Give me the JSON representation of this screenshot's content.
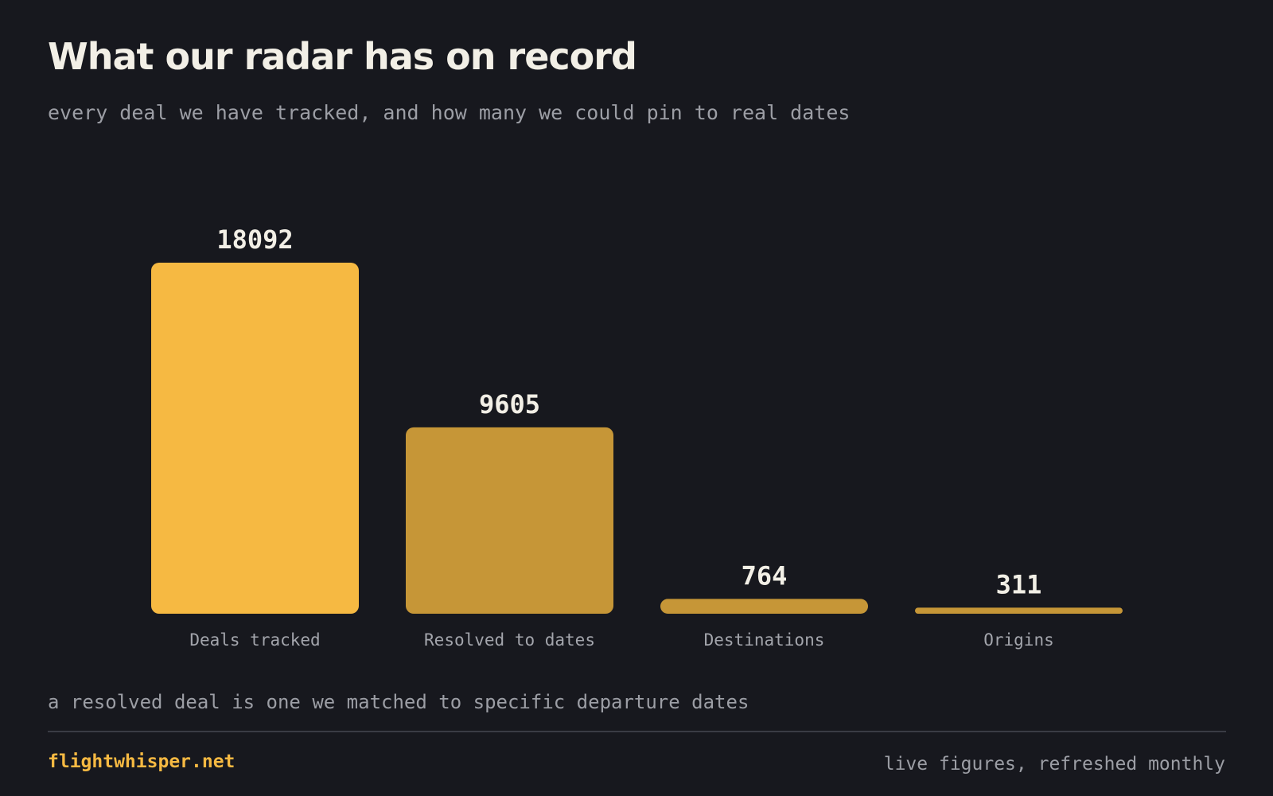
{
  "header": {
    "title": "What our radar has on record",
    "subtitle": "every deal we have tracked, and how many we could pin to real dates"
  },
  "chart_data": {
    "type": "bar",
    "categories": [
      "Deals tracked",
      "Resolved to dates",
      "Destinations",
      "Origins"
    ],
    "values": [
      18092,
      9605,
      764,
      311
    ],
    "value_labels": [
      "18092",
      "9605",
      "764",
      "311"
    ],
    "ylim": [
      0,
      18092
    ],
    "grid": false,
    "colors": [
      "#f6b942",
      "#c69637",
      "#c69637",
      "#c69637"
    ]
  },
  "footnote": "a resolved deal is one we matched to specific departure dates",
  "footer": {
    "brand": "flightwhisper.net",
    "note": "live figures, refreshed monthly"
  }
}
